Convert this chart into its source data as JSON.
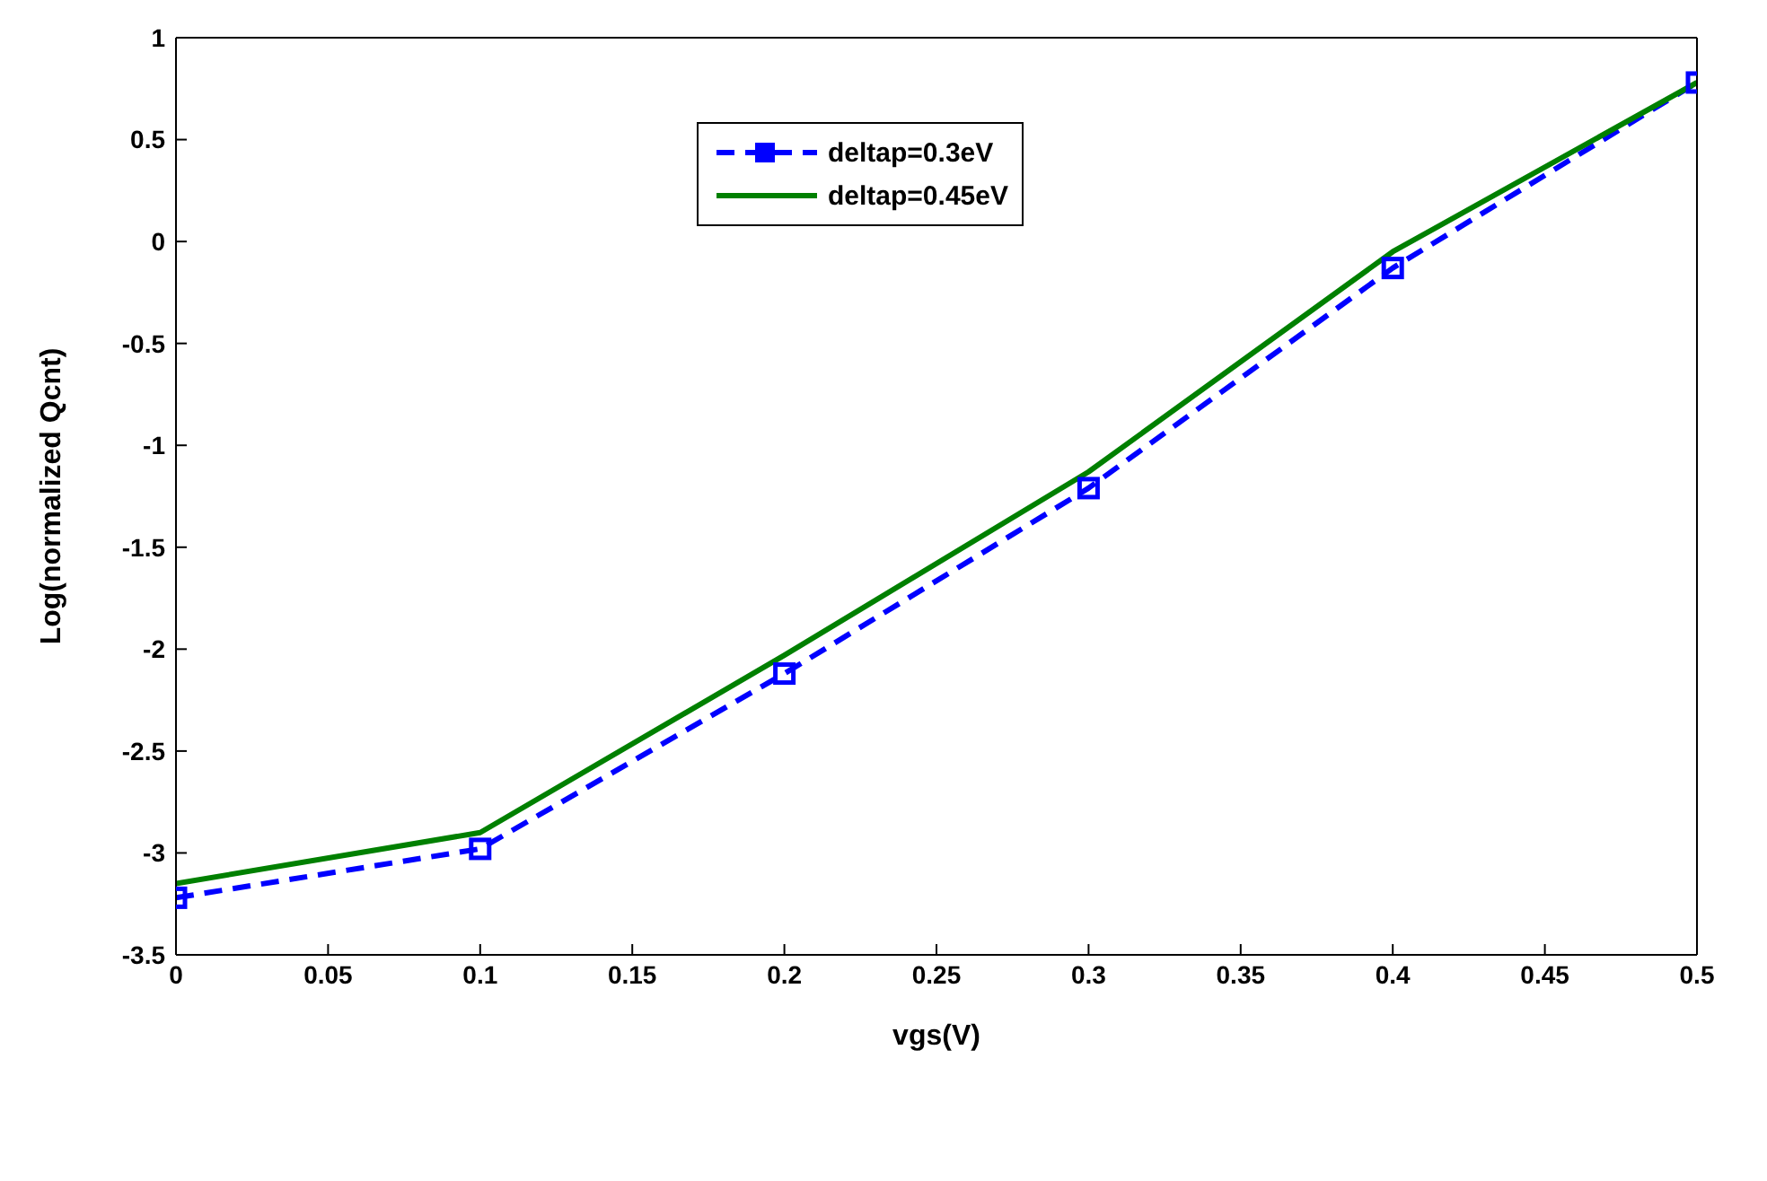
{
  "chart_data": {
    "type": "line",
    "xlabel": "vgs(V)",
    "ylabel": "Log(normalized Qcnt)",
    "x": [
      0,
      0.1,
      0.2,
      0.3,
      0.4,
      0.5
    ],
    "series": [
      {
        "name": "deltap=0.3eV",
        "color": "#0000ff",
        "values": [
          -3.22,
          -2.98,
          -2.12,
          -1.21,
          -0.13,
          0.78
        ],
        "marker": "square",
        "line_style": "dashed"
      },
      {
        "name": "deltap=0.45eV",
        "color": "#008000",
        "values": [
          -3.15,
          -2.9,
          -2.03,
          -1.13,
          -0.05,
          0.78
        ],
        "marker": "none",
        "line_style": "solid"
      }
    ],
    "xlim": [
      0,
      0.5
    ],
    "xticks": [
      0,
      0.05,
      0.1,
      0.15,
      0.2,
      0.25,
      0.3,
      0.35,
      0.4,
      0.45,
      0.5
    ],
    "ylim": [
      -3.5,
      1
    ],
    "yticks": [
      -3.5,
      -3,
      -2.5,
      -2,
      -1.5,
      -1,
      -0.5,
      0,
      0.5,
      1
    ],
    "grid": false,
    "legend": "top"
  }
}
